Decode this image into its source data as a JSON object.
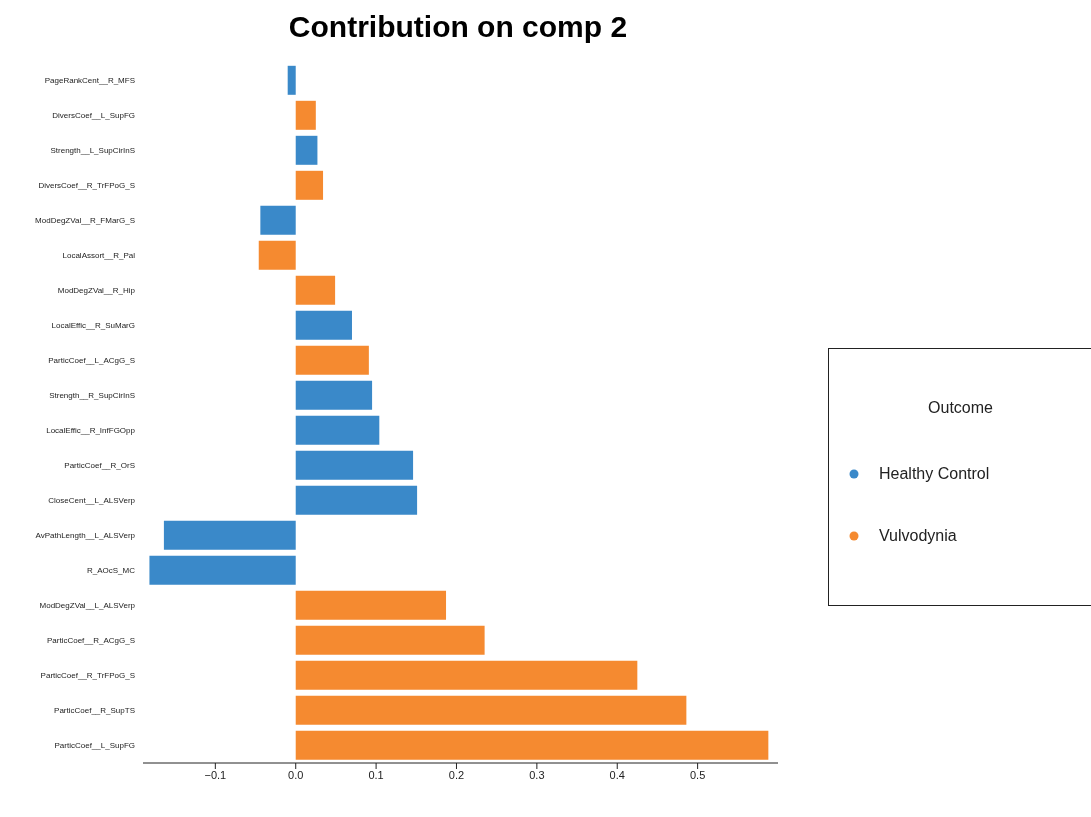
{
  "chart_data": {
    "type": "bar",
    "orientation": "horizontal",
    "stacked": true,
    "title": "Contribution on comp 2",
    "legend_title": "Outcome",
    "legend": "right",
    "grid": false,
    "categories": [
      "PageRankCent__R_MFS",
      "DiversCoef__L_SupFG",
      "Strength__L_SupCirInS",
      "DiversCoef__R_TrFPoG_S",
      "ModDegZVal__R_FMarG_S",
      "LocalAssort__R_Pal",
      "ModDegZVal__R_Hip",
      "LocalEffic__R_SuMarG",
      "ParticCoef__L_ACgG_S",
      "Strength__R_SupCirInS",
      "LocalEffic__R_InfFGOpp",
      "ParticCoef__R_OrS",
      "CloseCent__L_ALSVerp",
      "AvPathLength__L_ALSVerp",
      "R_AOcS_MC",
      "ModDegZVal__L_ALSVerp",
      "ParticCoef__R_ACgG_S",
      "ParticCoef__R_TrFPoG_S",
      "ParticCoef__R_SupTS",
      "ParticCoef__L_SupFG"
    ],
    "series": [
      {
        "name": "Healthy Control",
        "color": "#3a89c9",
        "values": [
          -0.01,
          null,
          0.027,
          null,
          -0.044,
          null,
          null,
          0.07,
          null,
          0.095,
          0.104,
          0.146,
          0.151,
          -0.164,
          -0.182,
          null,
          null,
          null,
          null,
          null
        ]
      },
      {
        "name": "Vulvodynia",
        "color": "#f58a30",
        "values": [
          null,
          0.025,
          null,
          0.034,
          null,
          -0.046,
          0.049,
          null,
          0.091,
          null,
          null,
          null,
          null,
          null,
          null,
          0.187,
          0.235,
          0.425,
          0.486,
          0.588
        ]
      }
    ],
    "xlim": [
      -0.19,
      0.6
    ],
    "xticks": [
      {
        "value": -0.1,
        "label": "−0.1"
      },
      {
        "value": 0,
        "label": "0.0"
      },
      0.1,
      0.2,
      0.3,
      0.4,
      0.5
    ]
  }
}
